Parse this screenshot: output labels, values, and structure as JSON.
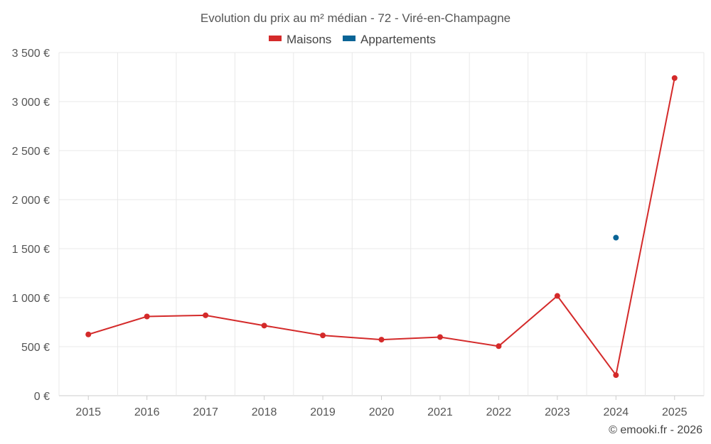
{
  "chart_data": {
    "type": "line",
    "title": "Evolution du prix au m² médian - 72 - Viré-en-Champagne",
    "x": [
      "2015",
      "2016",
      "2017",
      "2018",
      "2019",
      "2020",
      "2021",
      "2022",
      "2023",
      "2024",
      "2025"
    ],
    "series": [
      {
        "name": "Maisons",
        "color": "#d42a2a",
        "values": [
          625,
          808,
          820,
          715,
          615,
          572,
          598,
          505,
          1018,
          210,
          3240
        ]
      },
      {
        "name": "Appartements",
        "color": "#0a6496",
        "values": [
          null,
          null,
          null,
          null,
          null,
          null,
          null,
          null,
          null,
          1612,
          null
        ]
      }
    ],
    "y_ticks": [
      "0 €",
      "500 €",
      "1 000 €",
      "1 500 €",
      "2 000 €",
      "2 500 €",
      "3 000 €",
      "3 500 €"
    ],
    "ylim": [
      0,
      3500
    ],
    "grid": true,
    "legend_position": "top-center"
  },
  "credit": "© emooki.fr - 2026"
}
